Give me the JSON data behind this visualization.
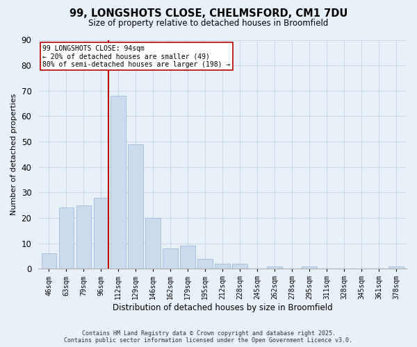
{
  "title": "99, LONGSHOTS CLOSE, CHELMSFORD, CM1 7DU",
  "subtitle": "Size of property relative to detached houses in Broomfield",
  "xlabel": "Distribution of detached houses by size in Broomfield",
  "ylabel": "Number of detached properties",
  "bin_labels": [
    "46sqm",
    "63sqm",
    "79sqm",
    "96sqm",
    "112sqm",
    "129sqm",
    "146sqm",
    "162sqm",
    "179sqm",
    "195sqm",
    "212sqm",
    "228sqm",
    "245sqm",
    "262sqm",
    "278sqm",
    "295sqm",
    "311sqm",
    "328sqm",
    "345sqm",
    "361sqm",
    "378sqm"
  ],
  "bar_values": [
    6,
    24,
    25,
    28,
    68,
    49,
    20,
    8,
    9,
    4,
    2,
    2,
    0,
    1,
    0,
    1,
    0,
    0,
    0,
    0,
    1
  ],
  "bar_color": "#ccdcef",
  "bar_edge_color": "#a8c0dc",
  "vline_color": "#bb0000",
  "annotation_text": "99 LONGSHOTS CLOSE: 94sqm\n← 20% of detached houses are smaller (49)\n80% of semi-detached houses are larger (198) →",
  "annotation_box_color": "#ffffff",
  "annotation_box_edge_color": "#bb0000",
  "ylim": [
    0,
    90
  ],
  "yticks": [
    0,
    10,
    20,
    30,
    40,
    50,
    60,
    70,
    80,
    90
  ],
  "grid_color": "#c8d8e8",
  "bg_color": "#e8f0f8",
  "footer_line1": "Contains HM Land Registry data © Crown copyright and database right 2025.",
  "footer_line2": "Contains public sector information licensed under the Open Government Licence v3.0."
}
